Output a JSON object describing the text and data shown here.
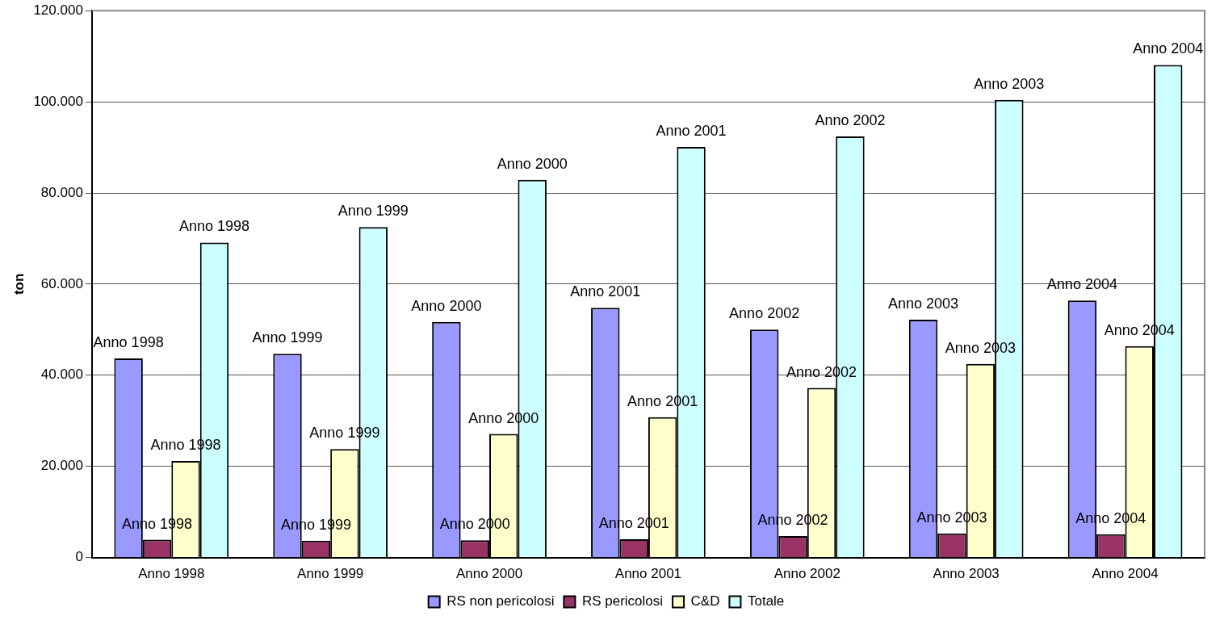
{
  "chart_data": {
    "type": "bar",
    "ylabel": "ton",
    "categories": [
      "Anno 1998",
      "Anno 1999",
      "Anno 2000",
      "Anno 2001",
      "Anno 2002",
      "Anno 2003",
      "Anno 2004"
    ],
    "series": [
      {
        "name": "RS non pericolosi",
        "color": "#9999ff",
        "values": [
          43700,
          44700,
          51700,
          54800,
          50000,
          52200,
          56400
        ],
        "value_labels": [
          "Anno 1998",
          "Anno 1999",
          "Anno 2000",
          "Anno 2001",
          "Anno 2002",
          "Anno 2003",
          "Anno 2004"
        ]
      },
      {
        "name": "RS pericolosi",
        "color": "#993366",
        "values": [
          3900,
          3700,
          3800,
          4000,
          4700,
          5300,
          5100
        ],
        "value_labels": [
          "Anno 1998",
          "Anno 1999",
          "Anno 2000",
          "Anno 2001",
          "Anno 2002",
          "Anno 2003",
          "Anno 2004"
        ]
      },
      {
        "name": "C&D",
        "color": "#ffffcc",
        "values": [
          21200,
          23800,
          27100,
          30800,
          37200,
          42500,
          46400
        ],
        "value_labels": [
          "Anno 1998",
          "Anno 1999",
          "Anno 2000",
          "Anno 2001",
          "Anno 2002",
          "Anno 2003",
          "Anno 2004"
        ]
      },
      {
        "name": "Totale",
        "color": "#ccffff",
        "values": [
          69100,
          72500,
          82900,
          90100,
          92400,
          100400,
          108100
        ],
        "value_labels": [
          "Anno 1998",
          "Anno 1999",
          "Anno 2000",
          "Anno 2001",
          "Anno 2002",
          "Anno 2003",
          "Anno 2004"
        ]
      }
    ],
    "ylim": [
      0,
      120000
    ],
    "yticks": [
      {
        "value": 0,
        "label": "0"
      },
      {
        "value": 20000,
        "label": "20.000"
      },
      {
        "value": 40000,
        "label": "40.000"
      },
      {
        "value": 60000,
        "label": "60.000"
      },
      {
        "value": 80000,
        "label": "80.000"
      },
      {
        "value": 100000,
        "label": "100.000"
      },
      {
        "value": 120000,
        "label": "120.000"
      }
    ],
    "grid": "y",
    "legend": "bottom"
  }
}
